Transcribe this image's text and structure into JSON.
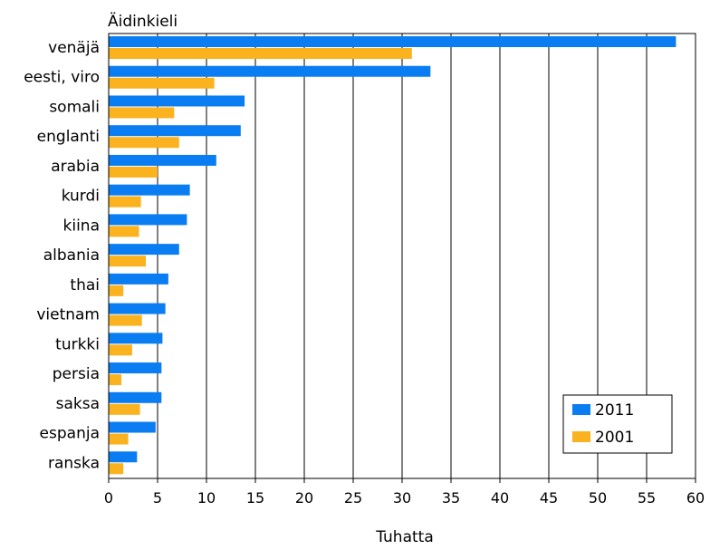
{
  "chart_data": {
    "type": "bar",
    "orientation": "horizontal",
    "title": "Äidinkieli",
    "xlabel": "Tuhatta",
    "ylabel": "",
    "categories": [
      "venäjä",
      "eesti, viro",
      "somali",
      "englanti",
      "arabia",
      "kurdi",
      "kiina",
      "albania",
      "thai",
      "vietnam",
      "turkki",
      "persia",
      "saksa",
      "espanja",
      "ranska"
    ],
    "series": [
      {
        "name": "2011",
        "color": "#0a7df2",
        "values": [
          58.0,
          32.9,
          13.9,
          13.5,
          11.0,
          8.3,
          8.0,
          7.2,
          6.1,
          5.8,
          5.5,
          5.4,
          5.4,
          4.8,
          2.9
        ]
      },
      {
        "name": "2001",
        "color": "#fbb21f",
        "values": [
          31.0,
          10.8,
          6.7,
          7.2,
          5.0,
          3.3,
          3.1,
          3.8,
          1.5,
          3.4,
          2.4,
          1.3,
          3.2,
          2.0,
          1.5
        ]
      }
    ],
    "xlim": [
      0,
      60
    ],
    "xticks": [
      "0",
      "5",
      "10",
      "15",
      "20",
      "25",
      "30",
      "35",
      "40",
      "45",
      "50",
      "55",
      "60"
    ],
    "grid": "vertical",
    "legend_position": "bottom-right"
  }
}
